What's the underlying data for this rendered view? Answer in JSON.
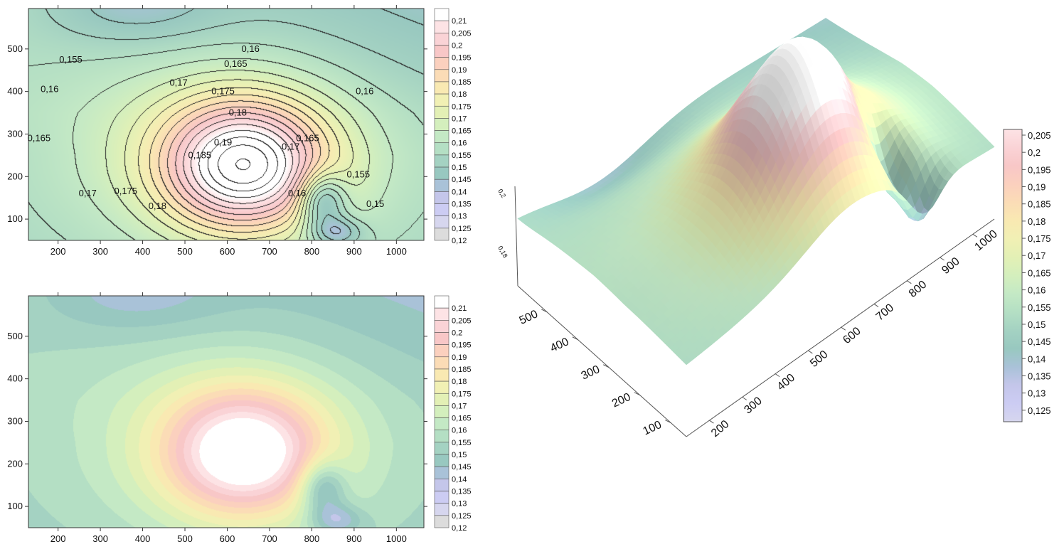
{
  "chart_data": [
    {
      "type": "contour",
      "id": "contour-lines",
      "xticks": [
        "200",
        "300",
        "400",
        "500",
        "600",
        "700",
        "800",
        "900",
        "1000"
      ],
      "yticks": [
        "100",
        "200",
        "300",
        "400",
        "500"
      ],
      "xlim": [
        130,
        1065
      ],
      "ylim": [
        50,
        595
      ],
      "contour_labels": [
        {
          "text": "0,16",
          "x": 655,
          "y": 500
        },
        {
          "text": "0,155",
          "x": 230,
          "y": 475
        },
        {
          "text": "0,165",
          "x": 620,
          "y": 465
        },
        {
          "text": "0,16",
          "x": 180,
          "y": 405
        },
        {
          "text": "0,17",
          "x": 485,
          "y": 420
        },
        {
          "text": "0,175",
          "x": 590,
          "y": 400
        },
        {
          "text": "0,16",
          "x": 925,
          "y": 400
        },
        {
          "text": "0,18",
          "x": 625,
          "y": 350
        },
        {
          "text": "0,165",
          "x": 155,
          "y": 290
        },
        {
          "text": "0,19",
          "x": 590,
          "y": 280
        },
        {
          "text": "0,185",
          "x": 535,
          "y": 250
        },
        {
          "text": "0,17",
          "x": 750,
          "y": 270
        },
        {
          "text": "0,165",
          "x": 790,
          "y": 290
        },
        {
          "text": "0,155",
          "x": 910,
          "y": 205
        },
        {
          "text": "0,17",
          "x": 270,
          "y": 160
        },
        {
          "text": "0,175",
          "x": 360,
          "y": 165
        },
        {
          "text": "0,18",
          "x": 435,
          "y": 130
        },
        {
          "text": "0,16",
          "x": 765,
          "y": 160
        },
        {
          "text": "0,15",
          "x": 950,
          "y": 135
        }
      ]
    },
    {
      "type": "heatmap",
      "id": "filled-contour",
      "xticks": [
        "200",
        "300",
        "400",
        "500",
        "600",
        "700",
        "800",
        "900",
        "1000"
      ],
      "yticks": [
        "100",
        "200",
        "300",
        "400",
        "500"
      ],
      "xlim": [
        130,
        1065
      ],
      "ylim": [
        50,
        595
      ]
    },
    {
      "type": "surface",
      "id": "surface-3d",
      "x_ticks": [
        "200",
        "300",
        "400",
        "500",
        "600",
        "700",
        "800",
        "900",
        "1000"
      ],
      "y_ticks": [
        "100",
        "200",
        "300",
        "400",
        "500"
      ],
      "z_ticks": [
        "0,2",
        "0,18"
      ]
    }
  ],
  "legend_contour": [
    "0,21",
    "0,205",
    "0,2",
    "0,195",
    "0,19",
    "0,185",
    "0,18",
    "0,175",
    "0,17",
    "0,165",
    "0,16",
    "0,155",
    "0,15",
    "0,145",
    "0,14",
    "0,135",
    "0,13",
    "0,125",
    "0,12"
  ],
  "legend_surface": [
    "0,205",
    "0,2",
    "0,195",
    "0,19",
    "0,185",
    "0,18",
    "0,175",
    "0,17",
    "0,165",
    "0,16",
    "0,155",
    "0,15",
    "0,145",
    "0,14",
    "0,135",
    "0,13",
    "0,125"
  ],
  "colors": {
    "0.120": "#dcdcdc",
    "0.125": "#d6d6ee",
    "0.130": "#ccccf3",
    "0.135": "#c4c6ea",
    "0.140": "#a9c2d8",
    "0.145": "#98c8c0",
    "0.150": "#a4d2c2",
    "0.155": "#b4dfc4",
    "0.160": "#c4e9c5",
    "0.165": "#d4efbd",
    "0.170": "#e3f0b5",
    "0.175": "#f1f0b4",
    "0.180": "#f9e9b2",
    "0.185": "#fbdcb6",
    "0.190": "#fbd0be",
    "0.195": "#f8c7c7",
    "0.200": "#fad3d6",
    "0.205": "#fde3e5",
    "0.210": "#ffffff"
  }
}
